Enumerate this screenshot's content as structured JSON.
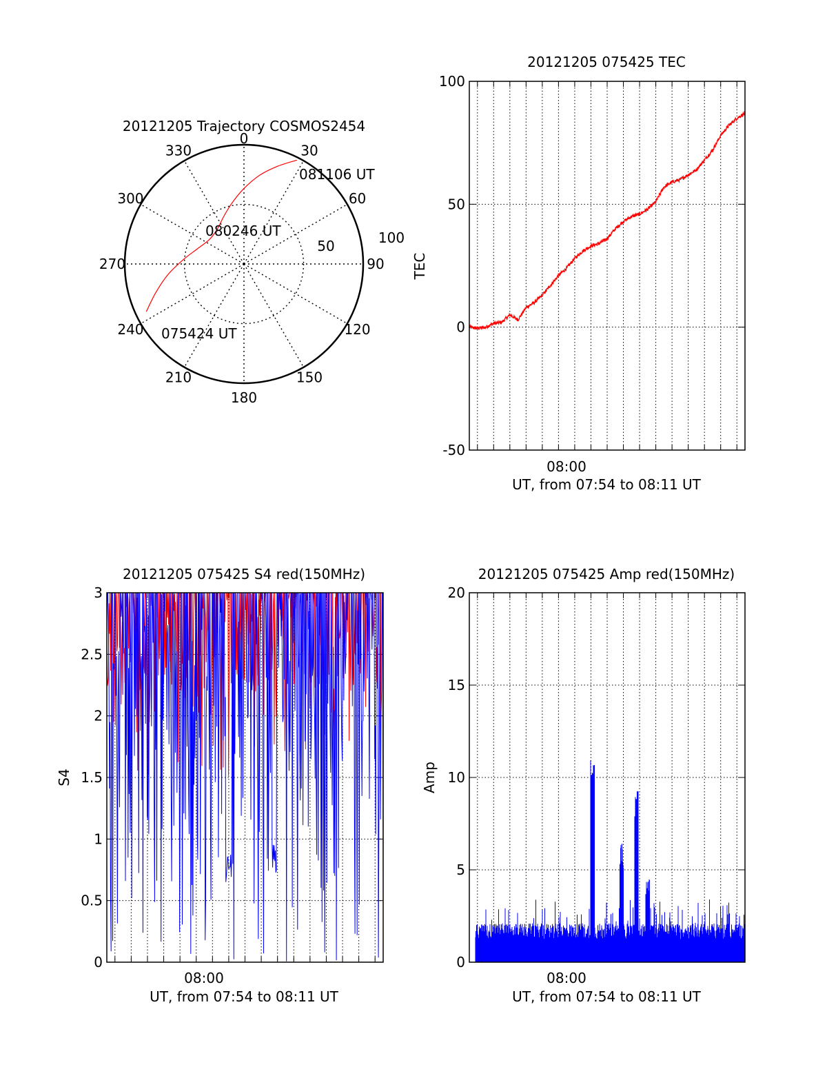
{
  "chart_data": [
    {
      "type": "polar",
      "title": "20121205 Trajectory COSMOS2454",
      "angle_labels": [
        "0",
        "30",
        "60",
        "90",
        "120",
        "150",
        "180",
        "210",
        "240",
        "270",
        "300",
        "330"
      ],
      "radial_labels": [
        "50",
        "100"
      ],
      "time_labels": {
        "start": "075424 UT",
        "middle": "080246 UT",
        "end": "081106 UT"
      },
      "trajectory": {
        "color": "#ff0000",
        "points": [
          {
            "az": 244,
            "elev": 8
          },
          {
            "az": 252,
            "elev": 20
          },
          {
            "az": 262,
            "elev": 32
          },
          {
            "az": 274,
            "elev": 44
          },
          {
            "az": 288,
            "elev": 53
          },
          {
            "az": 305,
            "elev": 58
          },
          {
            "az": 322,
            "elev": 57
          },
          {
            "az": 337,
            "elev": 51
          },
          {
            "az": 349,
            "elev": 43
          },
          {
            "az": 0,
            "elev": 33
          },
          {
            "az": 10,
            "elev": 22
          },
          {
            "az": 19,
            "elev": 12
          },
          {
            "az": 27,
            "elev": 2
          }
        ]
      }
    },
    {
      "type": "line",
      "title": "20121205 075425 TEC",
      "ylabel": "TEC",
      "xlabel": "UT, from 07:54 to 08:11 UT",
      "x_tick_label": "08:00",
      "y_ticks": [
        "-50",
        "0",
        "50",
        "100"
      ],
      "ylim": [
        -50,
        100
      ],
      "xlim_minutes": [
        0,
        17
      ],
      "color": "#ff0000",
      "series": [
        {
          "x_minutes": [
            0,
            0.5,
            1,
            1.5,
            2,
            2.5,
            3,
            3.5,
            4,
            4.5,
            5,
            5.5,
            6,
            6.5,
            7,
            7.5,
            8,
            8.5,
            9,
            9.5,
            10,
            10.5,
            11,
            11.5,
            12,
            12.5,
            13,
            13.5,
            14,
            14.5,
            15,
            15.5,
            16,
            16.5,
            17
          ],
          "values": [
            0,
            -0.5,
            0,
            1.5,
            2,
            5,
            3,
            8,
            10,
            13,
            17,
            21,
            24,
            28,
            31,
            33,
            34,
            36,
            40,
            43,
            45,
            46,
            48,
            51,
            57,
            59,
            60,
            62,
            64,
            68,
            72,
            78,
            82,
            85,
            87
          ]
        }
      ]
    },
    {
      "type": "line",
      "title": "20121205 075425 S4 red(150MHz)",
      "ylabel": "S4",
      "xlabel": "UT, from 07:54 to 08:11 UT",
      "x_tick_label": "08:00",
      "y_ticks": [
        "0",
        "0.5",
        "1",
        "1.5",
        "2",
        "2.5",
        "3"
      ],
      "ylim": [
        0,
        3
      ],
      "xlim_minutes": [
        0,
        17
      ],
      "colors": {
        "red": "#ff0000",
        "blue": "#0000ff"
      }
    },
    {
      "type": "bar",
      "title": "20121205 075425 Amp red(150MHz)",
      "ylabel": "Amp",
      "xlabel": "UT, from 07:54 to 08:11 UT",
      "x_tick_label": "08:00",
      "y_ticks": [
        "0",
        "5",
        "10",
        "15",
        "20"
      ],
      "ylim": [
        0,
        20
      ],
      "xlim_minutes": [
        0,
        17
      ],
      "color": "#0000ff",
      "peaks": [
        {
          "x_minutes": 7.6,
          "value": 11
        },
        {
          "x_minutes": 9.4,
          "value": 6.5
        },
        {
          "x_minutes": 10.3,
          "value": 9.3
        },
        {
          "x_minutes": 11.0,
          "value": 4.7
        }
      ]
    }
  ]
}
